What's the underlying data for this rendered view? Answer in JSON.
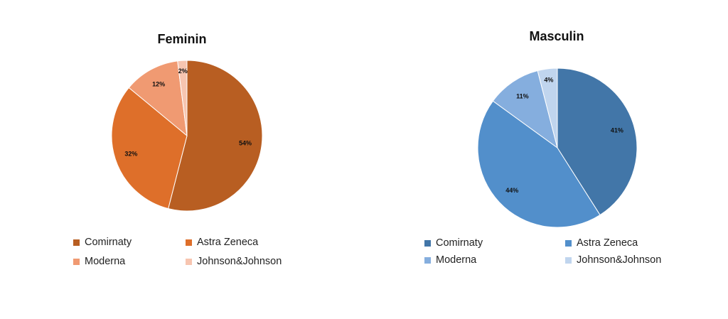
{
  "chart_data": [
    {
      "type": "pie",
      "title": "Feminin",
      "categories": [
        "Comirnaty",
        "Astra Zeneca",
        "Moderna",
        "Johnson&Johnson"
      ],
      "values": [
        54,
        32,
        12,
        2
      ],
      "labels": [
        "54%",
        "32%",
        "12%",
        "2%"
      ],
      "colors": [
        "#b85e22",
        "#de6f2a",
        "#f09a72",
        "#f7c5b0"
      ],
      "legend": "bottom"
    },
    {
      "type": "pie",
      "title": "Masculin",
      "categories": [
        "Comirnaty",
        "Astra Zeneca",
        "Moderna",
        "Johnson&Johnson"
      ],
      "values": [
        41,
        44,
        11,
        4
      ],
      "labels": [
        "41%",
        "44%",
        "11%",
        "4%"
      ],
      "colors": [
        "#4276a8",
        "#528fcb",
        "#85aede",
        "#c0d5ee"
      ],
      "legend": "bottom"
    }
  ]
}
